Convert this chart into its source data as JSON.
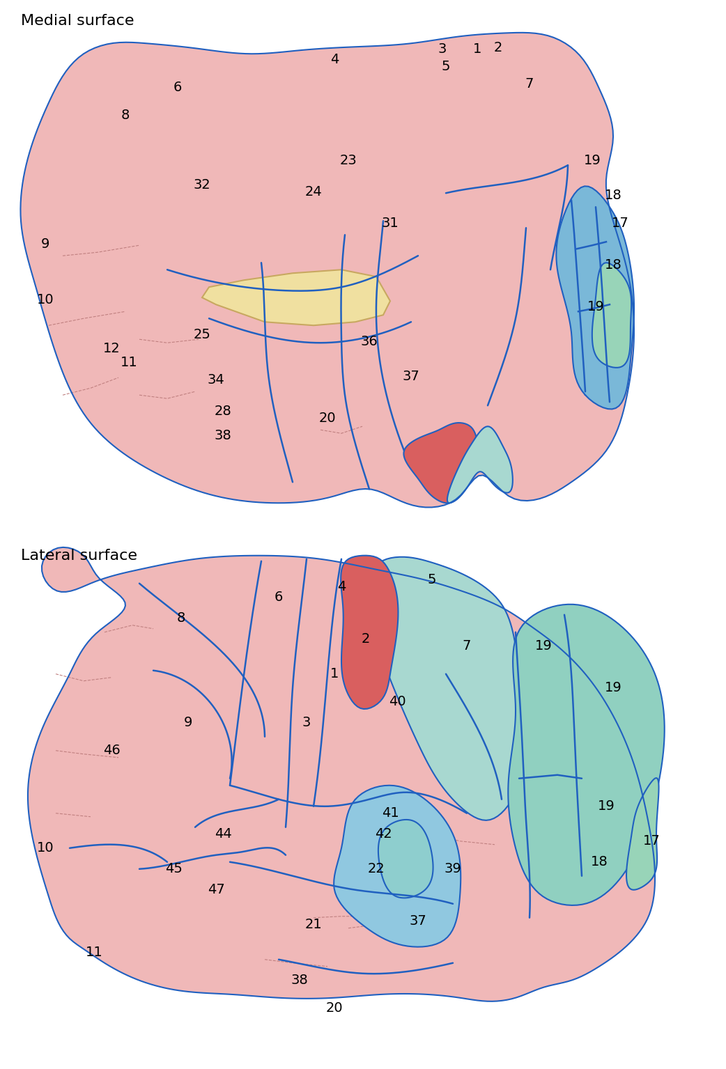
{
  "title_medial": "Medial surface",
  "title_lateral": "Lateral surface",
  "bg_color": "#ffffff",
  "brain_pink": "#f0b8b8",
  "brain_pink_light": "#f5c8c8",
  "brain_red": "#d95f5f",
  "brain_teal": "#8ecece",
  "brain_teal_light": "#a8d8d0",
  "brain_blue": "#7ab8d8",
  "brain_green_light": "#98d4b8",
  "brain_yellow": "#f0e0a0",
  "border_blue": "#2060c0",
  "text_color": "#000000",
  "font_size": 14
}
